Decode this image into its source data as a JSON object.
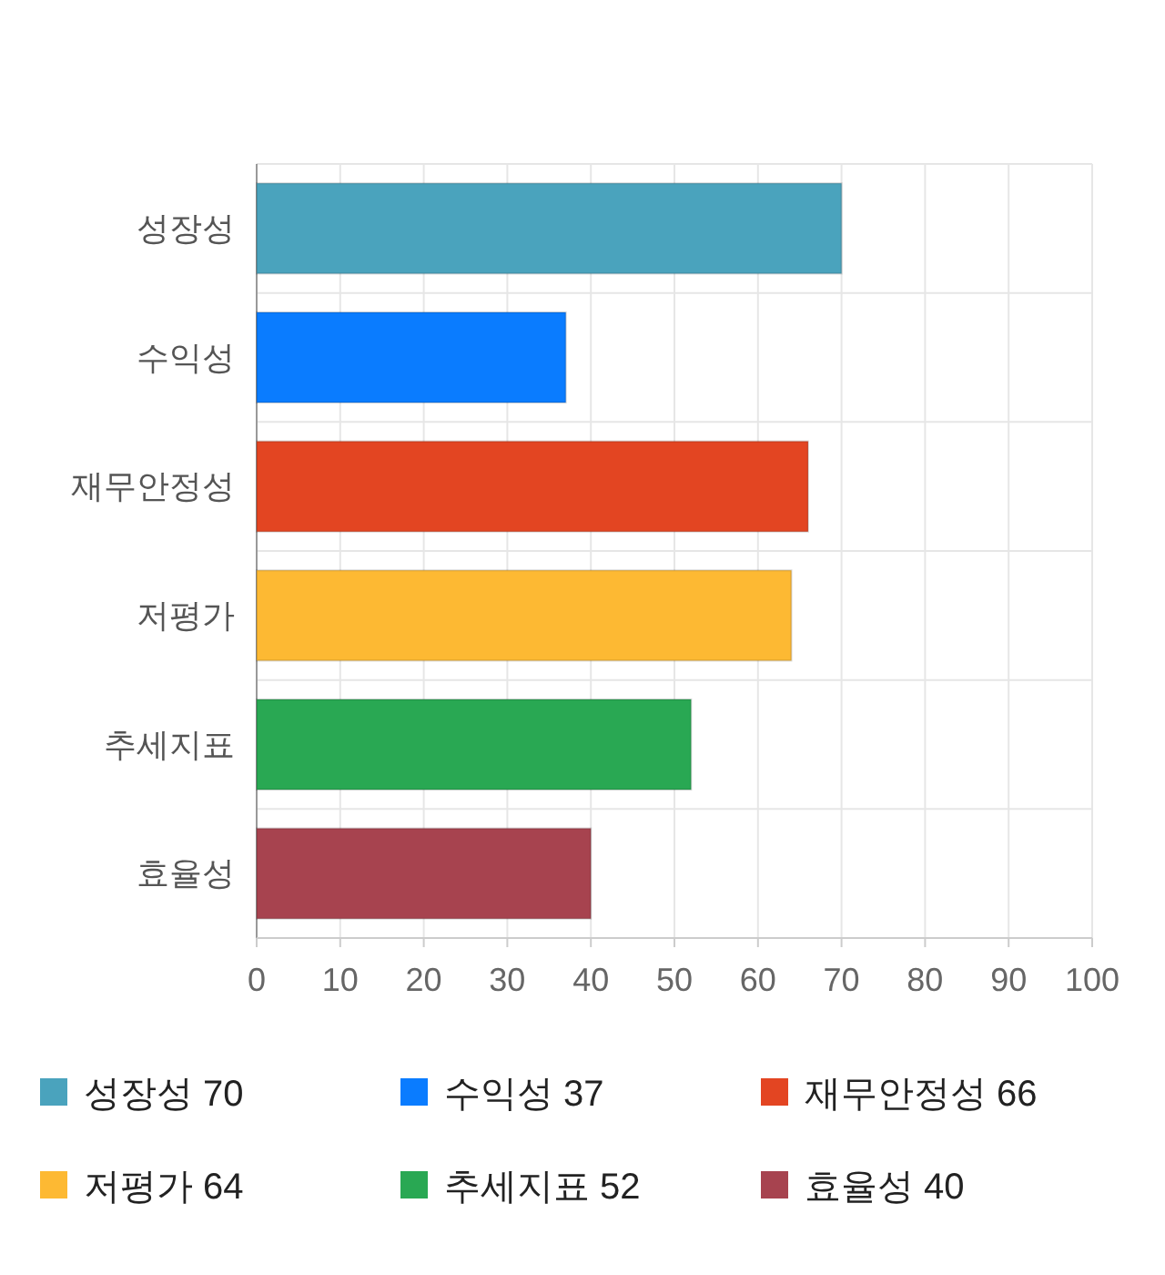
{
  "chart_data": {
    "type": "bar",
    "orientation": "horizontal",
    "categories": [
      "성장성",
      "수익성",
      "재무안정성",
      "저평가",
      "추세지표",
      "효율성"
    ],
    "series": [
      {
        "name": "성장성 70",
        "color": "#4aa3bd",
        "values": [
          70,
          null,
          null,
          null,
          null,
          null
        ]
      },
      {
        "name": "수익성 37",
        "color": "#0a7cff",
        "values": [
          null,
          37,
          null,
          null,
          null,
          null
        ]
      },
      {
        "name": "재무안정성 66",
        "color": "#e34522",
        "values": [
          null,
          null,
          66,
          null,
          null,
          null
        ]
      },
      {
        "name": "저평가 64",
        "color": "#fdb933",
        "values": [
          null,
          null,
          null,
          64,
          null,
          null
        ]
      },
      {
        "name": "추세지표 52",
        "color": "#29a853",
        "values": [
          null,
          null,
          null,
          null,
          52,
          null
        ]
      },
      {
        "name": "효율성 40",
        "color": "#a7434f",
        "values": [
          null,
          null,
          null,
          null,
          null,
          40
        ]
      }
    ],
    "xlim": [
      0,
      100
    ],
    "xticks": [
      0,
      10,
      20,
      30,
      40,
      50,
      60,
      70,
      80,
      90,
      100
    ],
    "grid": true,
    "legend": "bottom"
  }
}
